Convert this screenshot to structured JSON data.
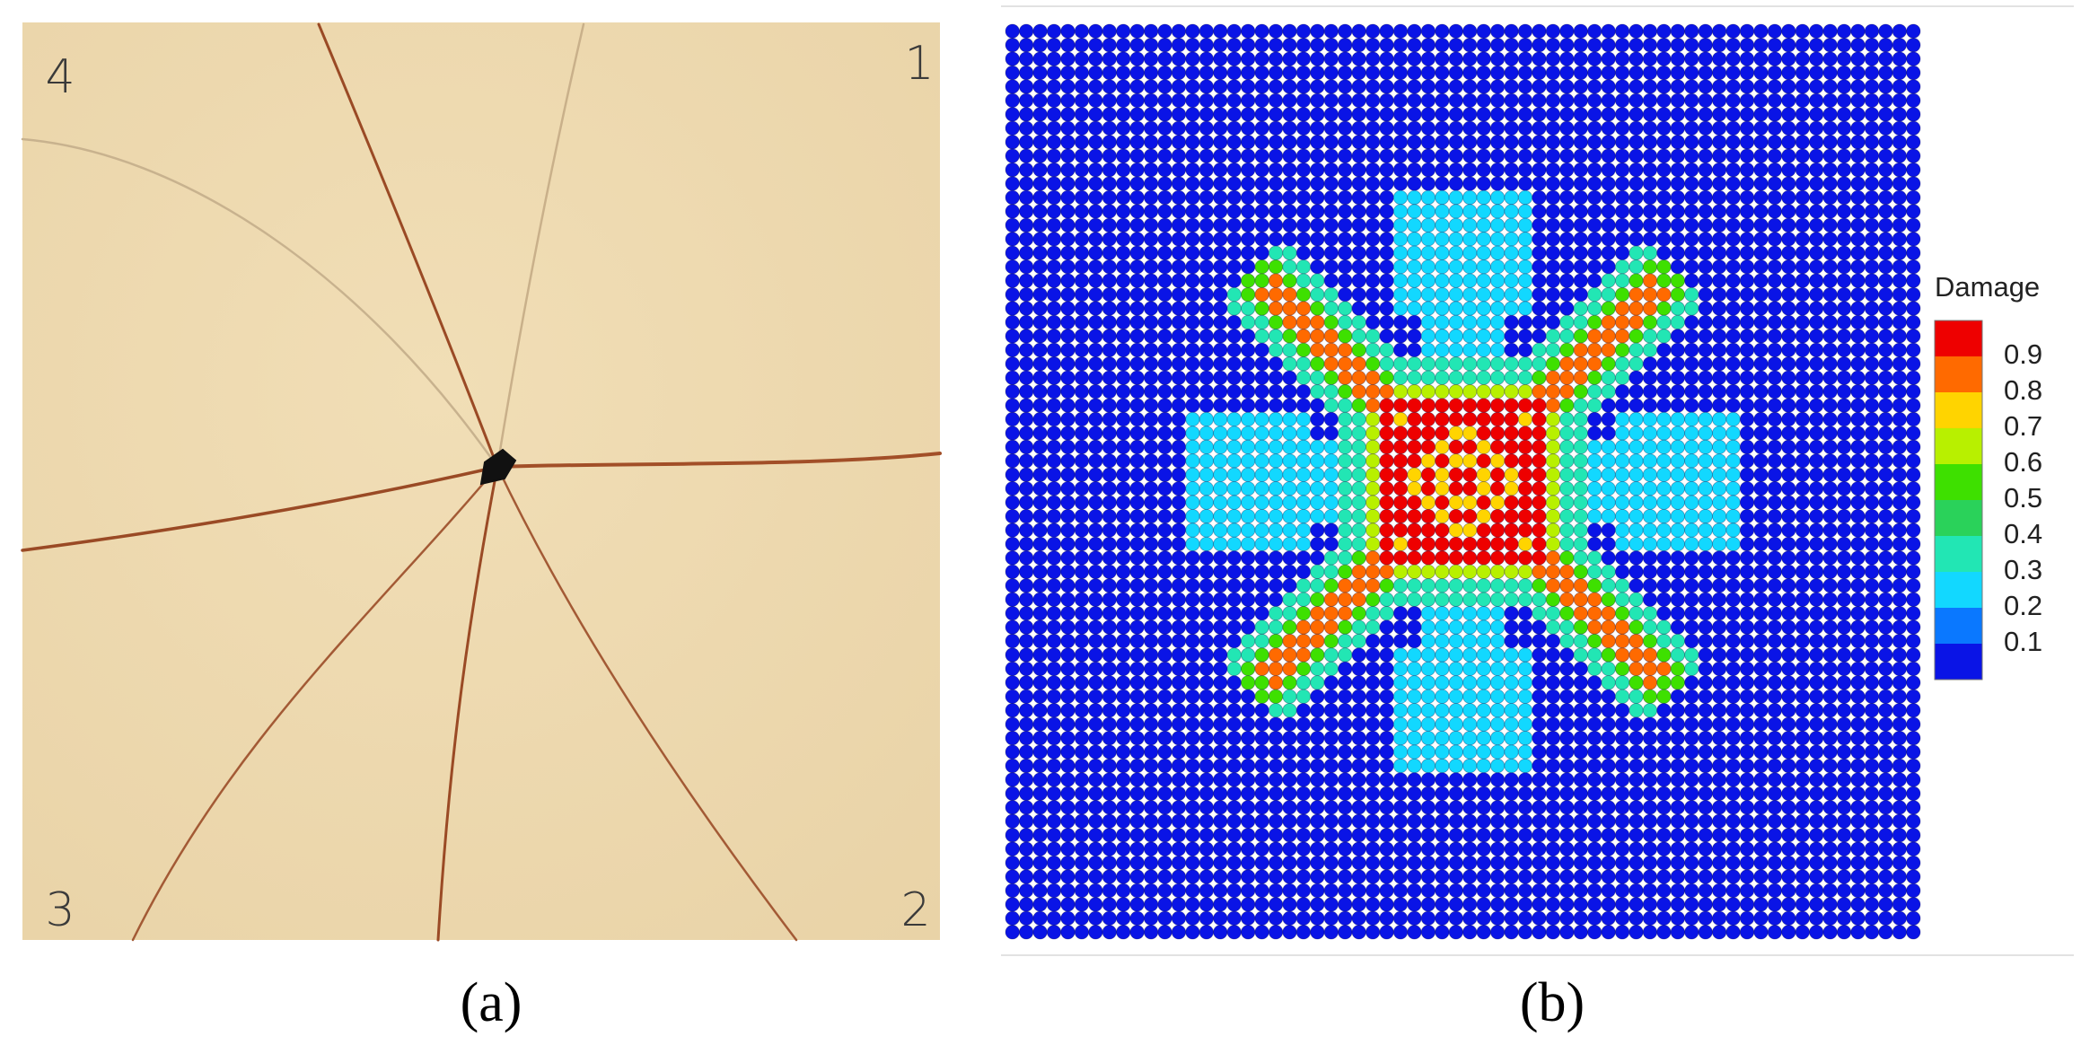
{
  "panels": [
    {
      "caption": "(a)",
      "corner_labels": [
        "4",
        "1",
        "3",
        "2"
      ]
    },
    {
      "caption": "(b)",
      "legend": {
        "title": "Damage",
        "ticks": [
          "0.9",
          "0.8",
          "0.7",
          "0.6",
          "0.5",
          "0.4",
          "0.3",
          "0.2",
          "0.1"
        ],
        "colors": [
          "#ee0000",
          "#ff6a00",
          "#ffd400",
          "#b8f000",
          "#3ee000",
          "#2ad25a",
          "#22e6b4",
          "#12d8ff",
          "#0a78ff",
          "#0a14e6"
        ]
      }
    }
  ]
}
